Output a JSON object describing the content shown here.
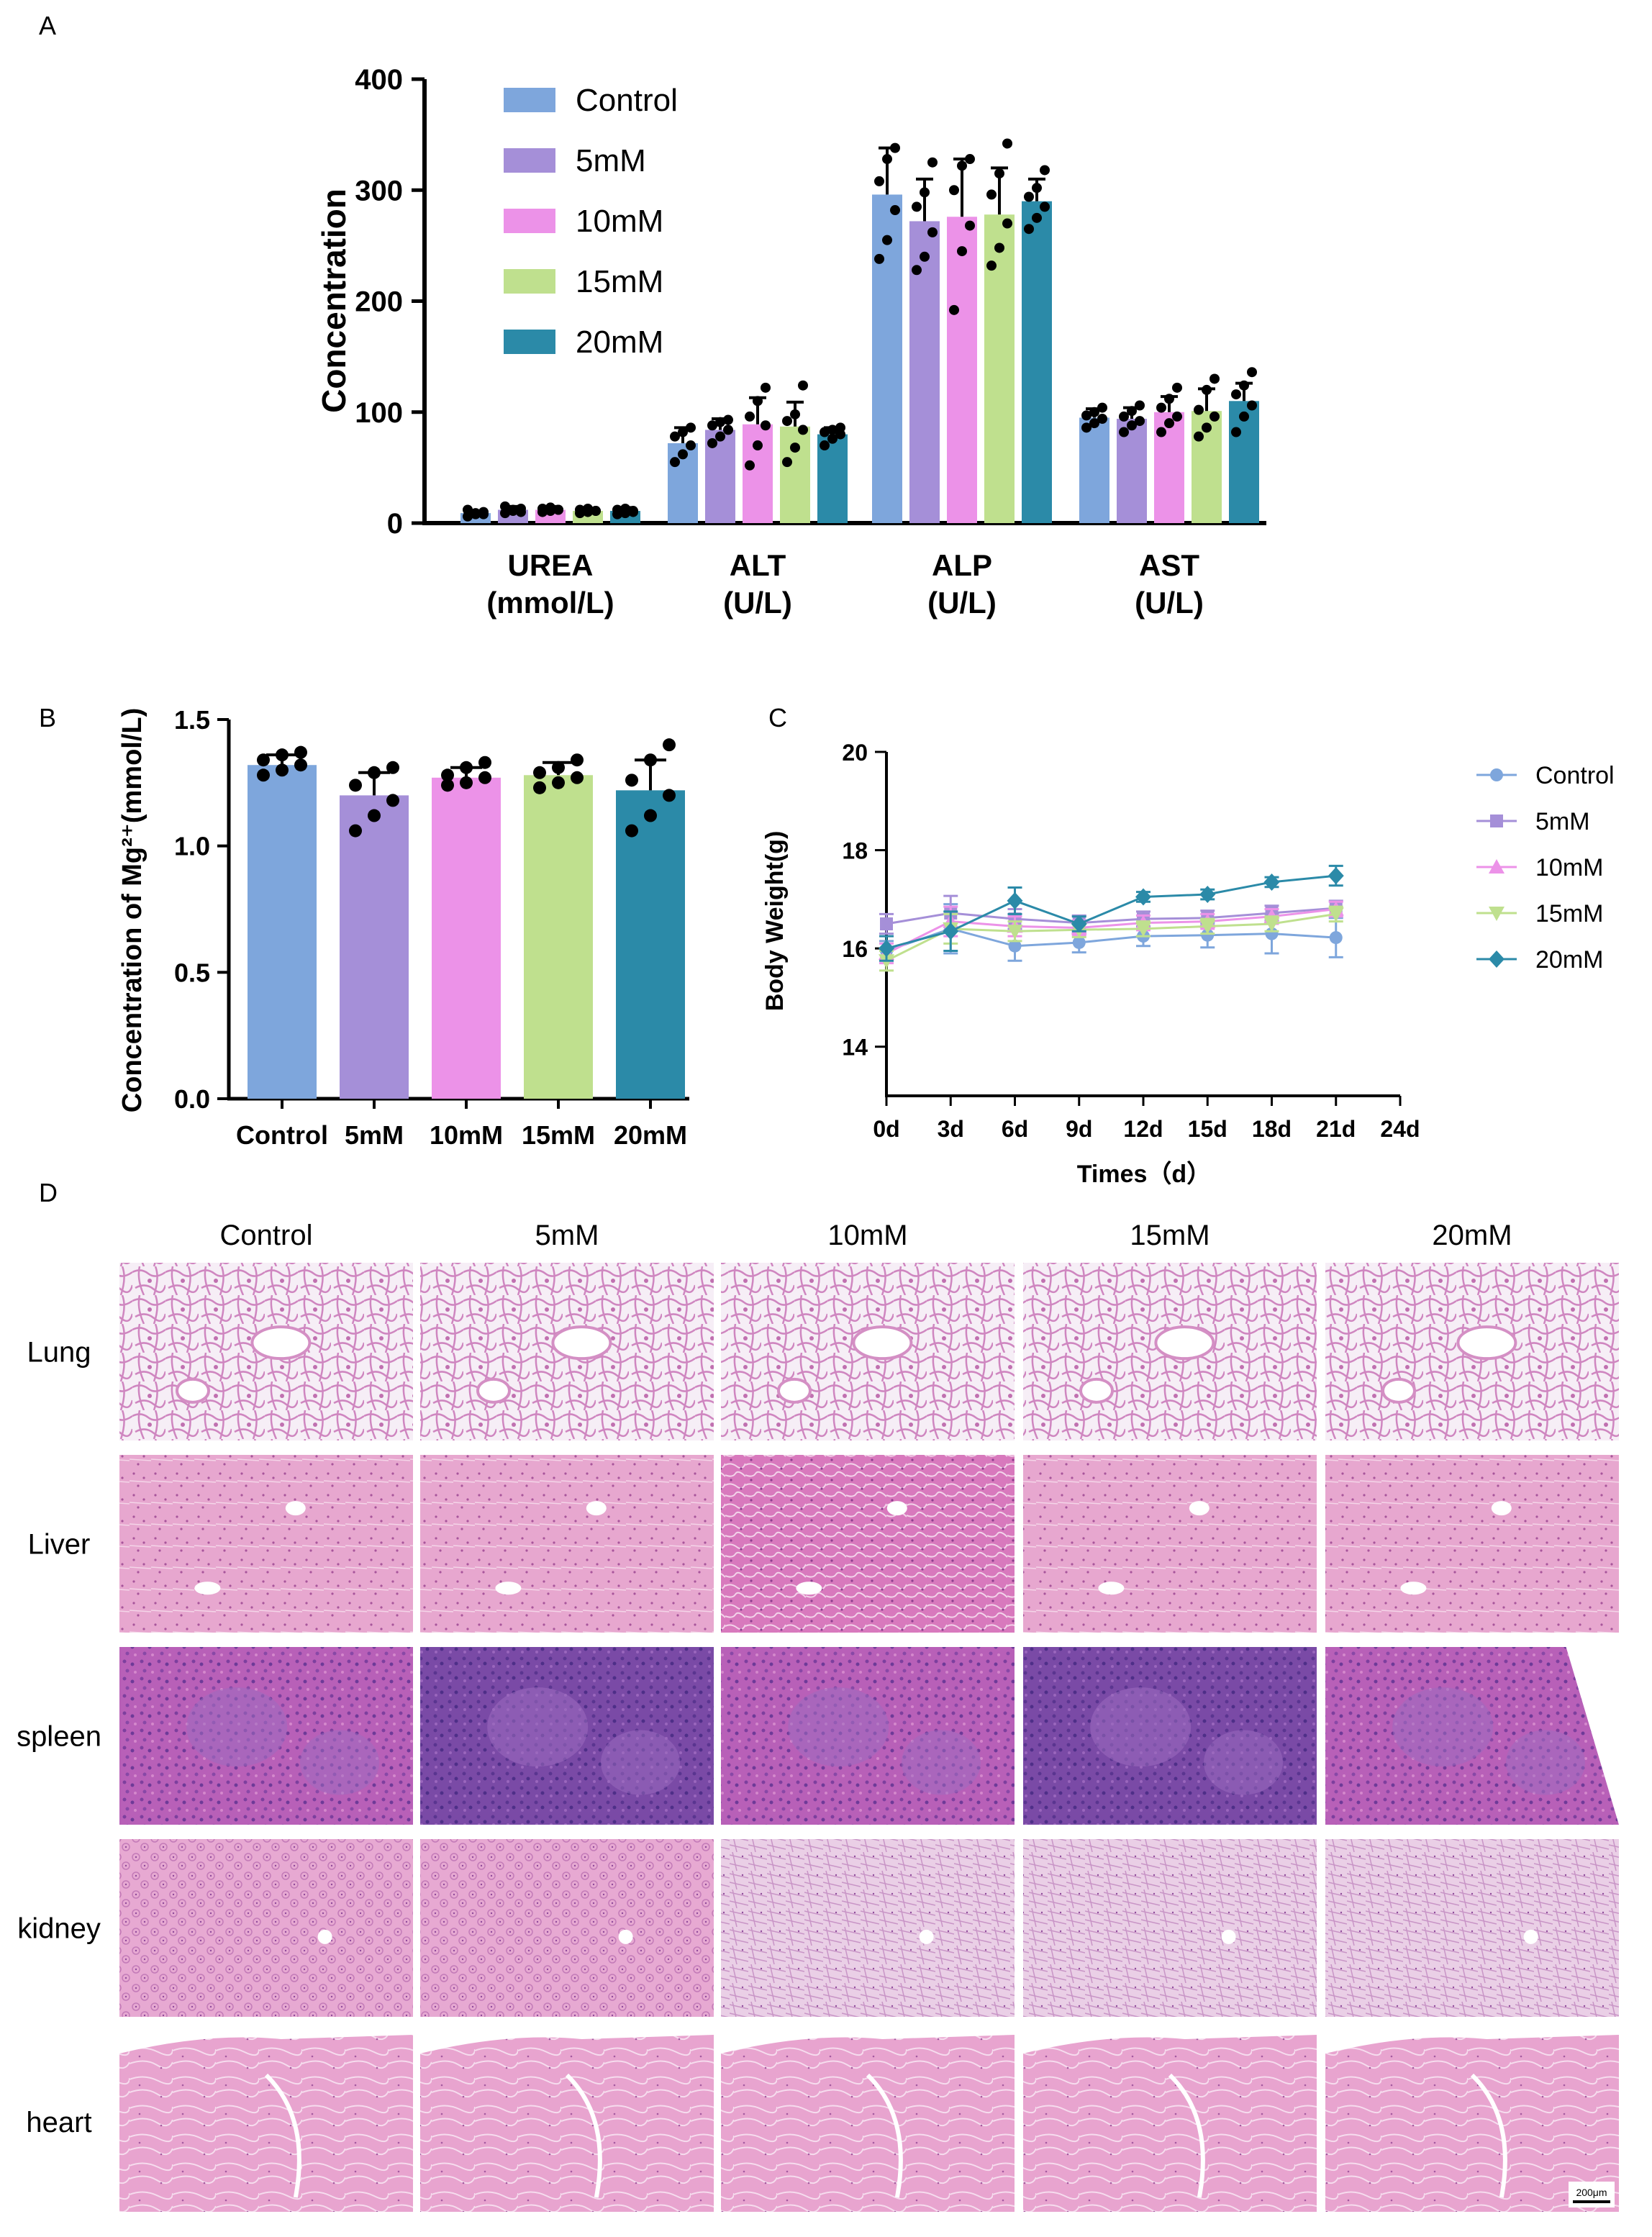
{
  "series_colors": {
    "Control": "#7ea6dc",
    "5mM": "#a58fd8",
    "10mM": "#ec92e8",
    "15mM": "#bfe08e",
    "20mM": "#2b8aa8"
  },
  "panel_labels": {
    "A": "A",
    "B": "B",
    "C": "C",
    "D": "D"
  },
  "chart_data": [
    {
      "id": "A",
      "type": "bar",
      "ylabel": "Concentration",
      "ylim": [
        0,
        400
      ],
      "yticks": [
        "0",
        "100",
        "200",
        "300",
        "400"
      ],
      "category_labels": [
        [
          "UREA",
          "(mmol/L)"
        ],
        [
          "ALT",
          "(U/L)"
        ],
        [
          "ALP",
          "(U/L)"
        ],
        [
          "AST",
          "(U/L)"
        ]
      ],
      "legend": [
        "Control",
        "5mM",
        "10mM",
        "15mM",
        "20mM"
      ],
      "legend_placement": "top-left",
      "series": [
        {
          "name": "Control",
          "values": [
            9,
            72,
            296,
            95
          ],
          "sd": [
            2,
            14,
            42,
            8
          ],
          "points": [
            [
              6,
              8,
              10,
              12,
              9,
              8
            ],
            [
              55,
              62,
              70,
              78,
              82,
              86
            ],
            [
              238,
              255,
              282,
              308,
              328,
              338
            ],
            [
              86,
              90,
              94,
              97,
              100,
              104
            ]
          ]
        },
        {
          "name": "5mM",
          "values": [
            12,
            84,
            272,
            94
          ],
          "sd": [
            3,
            10,
            38,
            10
          ],
          "points": [
            [
              9,
              11,
              13,
              15,
              12,
              10
            ],
            [
              72,
              78,
              84,
              88,
              91,
              93
            ],
            [
              228,
              240,
              262,
              285,
              298,
              325
            ],
            [
              82,
              88,
              92,
              96,
              101,
              106
            ]
          ]
        },
        {
          "name": "10mM",
          "values": [
            12,
            89,
            276,
            100
          ],
          "sd": [
            3,
            24,
            52,
            14
          ],
          "points": [
            [
              10,
              11,
              12,
              13,
              14,
              12
            ],
            [
              52,
              70,
              88,
              96,
              110,
              122
            ],
            [
              192,
              245,
              268,
              300,
              322,
              328
            ],
            [
              82,
              90,
              96,
              104,
              112,
              122
            ]
          ]
        },
        {
          "name": "15mM",
          "values": [
            11,
            87,
            278,
            101
          ],
          "sd": [
            2,
            22,
            42,
            20
          ],
          "points": [
            [
              9,
              10,
              11,
              12,
              13,
              11
            ],
            [
              55,
              68,
              84,
              92,
              98,
              124
            ],
            [
              232,
              248,
              270,
              296,
              315,
              342
            ],
            [
              78,
              86,
              96,
              102,
              120,
              130
            ]
          ]
        },
        {
          "name": "20mM",
          "values": [
            11,
            80,
            290,
            110
          ],
          "sd": [
            3,
            6,
            20,
            16
          ],
          "points": [
            [
              8,
              9,
              10,
              12,
              13,
              11
            ],
            [
              70,
              76,
              80,
              82,
              84,
              86
            ],
            [
              265,
              275,
              285,
              294,
              302,
              318
            ],
            [
              82,
              96,
              106,
              116,
              124,
              136
            ]
          ]
        }
      ]
    },
    {
      "id": "B",
      "type": "bar",
      "ylabel": "Concentration of Mg²⁺(mmol/L)",
      "ylim": [
        0,
        1.5
      ],
      "yticks": [
        "0.0",
        "0.5",
        "1.0",
        "1.5"
      ],
      "categories": [
        "Control",
        "5mM",
        "10mM",
        "15mM",
        "20mM"
      ],
      "values": [
        1.32,
        1.2,
        1.27,
        1.28,
        1.22
      ],
      "sd": [
        0.04,
        0.09,
        0.04,
        0.05,
        0.12
      ],
      "points": [
        [
          1.28,
          1.3,
          1.32,
          1.34,
          1.36,
          1.37
        ],
        [
          1.06,
          1.12,
          1.18,
          1.24,
          1.29,
          1.31
        ],
        [
          1.24,
          1.25,
          1.27,
          1.28,
          1.31,
          1.33
        ],
        [
          1.23,
          1.25,
          1.27,
          1.29,
          1.31,
          1.34
        ],
        [
          1.06,
          1.12,
          1.2,
          1.26,
          1.34,
          1.4
        ]
      ]
    },
    {
      "id": "C",
      "type": "line",
      "ylabel": "Body Weight(g)",
      "xlabel": "Times（d）",
      "x": [
        0,
        3,
        6,
        9,
        12,
        15,
        18,
        21
      ],
      "xticks": [
        "0d",
        "3d",
        "6d",
        "9d",
        "12d",
        "15d",
        "18d",
        "21d",
        "24d"
      ],
      "xlim": [
        0,
        24
      ],
      "ylim": [
        13,
        20
      ],
      "yticks": [
        "14",
        "16",
        "18",
        "20"
      ],
      "legend_placement": "right",
      "series": [
        {
          "name": "Control",
          "marker": "circle",
          "values": [
            15.95,
            16.4,
            16.05,
            16.12,
            16.25,
            16.27,
            16.3,
            16.22
          ],
          "sd": [
            0.2,
            0.5,
            0.3,
            0.2,
            0.2,
            0.25,
            0.4,
            0.4
          ]
        },
        {
          "name": "5mM",
          "marker": "square",
          "values": [
            16.5,
            16.72,
            16.6,
            16.52,
            16.6,
            16.62,
            16.72,
            16.82
          ],
          "sd": [
            0.2,
            0.35,
            0.2,
            0.15,
            0.15,
            0.15,
            0.15,
            0.15
          ]
        },
        {
          "name": "10mM",
          "marker": "triangle-up",
          "values": [
            15.9,
            16.55,
            16.45,
            16.42,
            16.52,
            16.55,
            16.65,
            16.8
          ],
          "sd": [
            0.2,
            0.3,
            0.2,
            0.15,
            0.15,
            0.15,
            0.15,
            0.15
          ]
        },
        {
          "name": "15mM",
          "marker": "triangle-down",
          "values": [
            15.75,
            16.4,
            16.35,
            16.38,
            16.4,
            16.45,
            16.5,
            16.7
          ],
          "sd": [
            0.2,
            0.3,
            0.2,
            0.15,
            0.15,
            0.15,
            0.15,
            0.15
          ]
        },
        {
          "name": "20mM",
          "marker": "diamond",
          "values": [
            16.0,
            16.35,
            16.97,
            16.5,
            17.05,
            17.1,
            17.35,
            17.48
          ],
          "sd": [
            0.25,
            0.4,
            0.27,
            0.15,
            0.1,
            0.1,
            0.1,
            0.2
          ]
        }
      ]
    }
  ],
  "histology": {
    "columns": [
      "Control",
      "5mM",
      "10mM",
      "15mM",
      "20mM"
    ],
    "rows": [
      "Lung",
      "Liver",
      "spleen",
      "kidney",
      "heart"
    ],
    "scale_bar": "200μm"
  }
}
